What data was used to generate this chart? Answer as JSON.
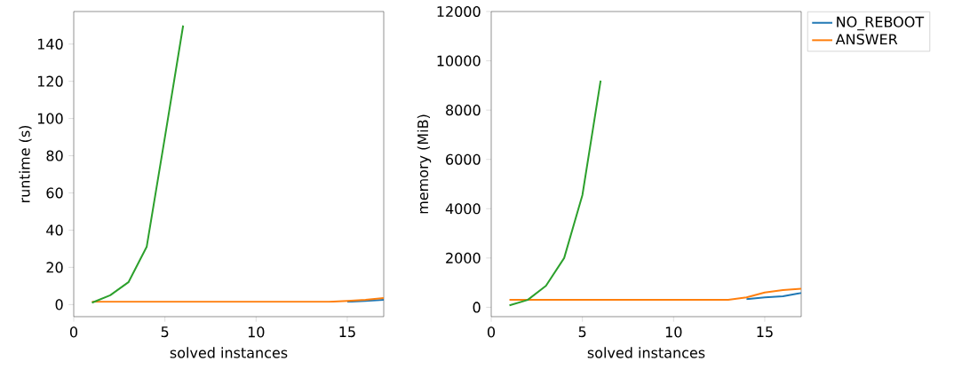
{
  "chart_data": [
    {
      "type": "line",
      "xlabel": "solved instances",
      "ylabel": "runtime (s)",
      "xlim": [
        0,
        17
      ],
      "ylim": [
        -6.5,
        157.5
      ],
      "xticks": [
        0,
        5,
        10,
        15
      ],
      "yticks": [
        0,
        20,
        40,
        60,
        80,
        100,
        120,
        140
      ],
      "series": [
        {
          "color": "#1f77b4",
          "x": [
            15,
            16,
            17
          ],
          "values": [
            1.5,
            2,
            2.5
          ]
        },
        {
          "color": "#ff7f0e",
          "x": [
            1,
            2,
            3,
            4,
            5,
            6,
            7,
            8,
            9,
            10,
            11,
            12,
            13,
            14,
            15,
            16,
            17
          ],
          "values": [
            1.5,
            1.5,
            1.5,
            1.5,
            1.5,
            1.5,
            1.5,
            1.5,
            1.5,
            1.5,
            1.5,
            1.5,
            1.5,
            1.5,
            2,
            2.5,
            3.5
          ]
        },
        {
          "color": "#2ca02c",
          "x": [
            1,
            2,
            3,
            4,
            5,
            6
          ],
          "values": [
            1,
            5,
            12,
            31,
            90,
            150
          ]
        }
      ]
    },
    {
      "type": "line",
      "xlabel": "solved instances",
      "ylabel": "memory (MiB)",
      "xlim": [
        0,
        17
      ],
      "ylim": [
        -380,
        12000
      ],
      "xticks": [
        0,
        5,
        10,
        15
      ],
      "yticks": [
        0,
        2000,
        4000,
        6000,
        8000,
        10000,
        12000
      ],
      "legend": "top right",
      "series": [
        {
          "name": "NO_REBOOT",
          "color": "#1f77b4",
          "x": [
            14,
            15,
            16,
            17
          ],
          "values": [
            330,
            400,
            450,
            580
          ]
        },
        {
          "name": "ANSWER",
          "color": "#ff7f0e",
          "x": [
            1,
            2,
            3,
            4,
            5,
            6,
            7,
            8,
            9,
            10,
            11,
            12,
            13,
            14,
            15,
            16,
            17
          ],
          "values": [
            300,
            300,
            300,
            300,
            300,
            300,
            300,
            300,
            300,
            300,
            300,
            300,
            300,
            400,
            600,
            700,
            750
          ]
        },
        {
          "color": "#2ca02c",
          "x": [
            1,
            2,
            3,
            4,
            5,
            6
          ],
          "values": [
            80,
            300,
            870,
            2000,
            4550,
            9200
          ]
        }
      ]
    }
  ]
}
